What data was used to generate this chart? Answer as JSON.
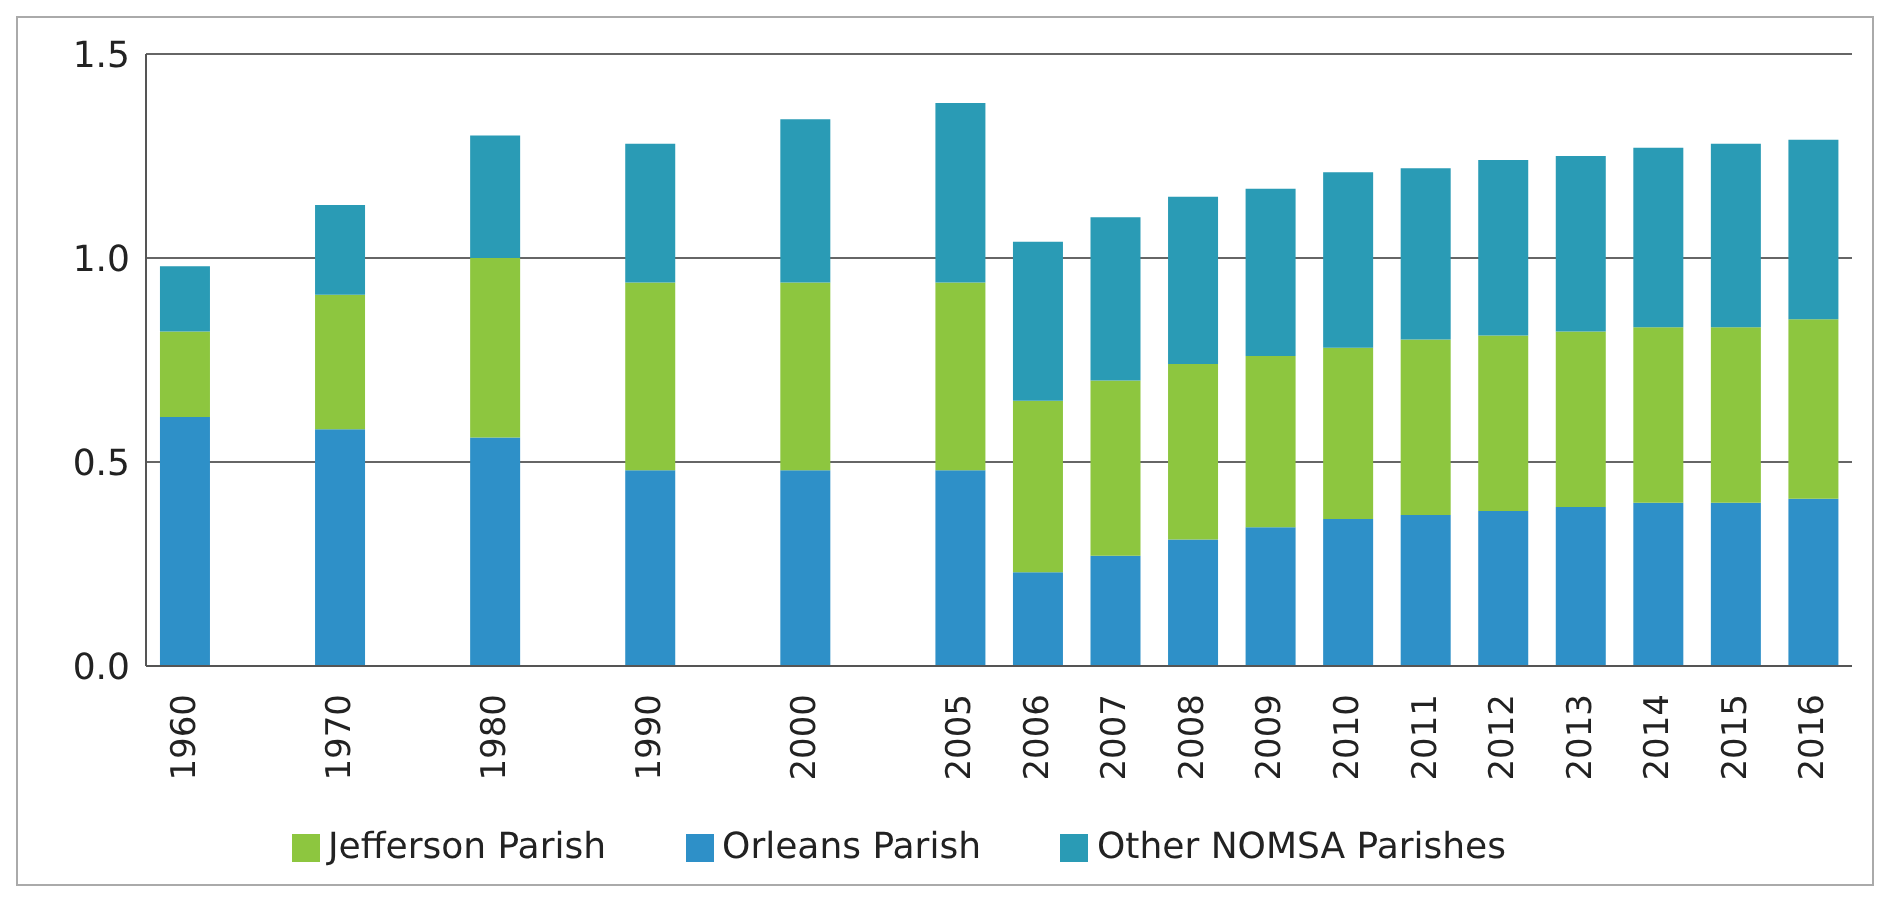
{
  "chart_data": {
    "type": "bar",
    "stacked": true,
    "categories": [
      "1960",
      null,
      "1970",
      null,
      "1980",
      null,
      "1990",
      null,
      "2000",
      null,
      "2005",
      "2006",
      "2007",
      "2008",
      "2009",
      "2010",
      "2011",
      "2012",
      "2013",
      "2014",
      "2015",
      "2016"
    ],
    "series": [
      {
        "name": "Orleans Parish",
        "color": "#2e90c8",
        "values": [
          0.61,
          null,
          0.58,
          null,
          0.56,
          null,
          0.48,
          null,
          0.48,
          null,
          0.48,
          0.23,
          0.27,
          0.31,
          0.34,
          0.36,
          0.37,
          0.38,
          0.39,
          0.4,
          0.4,
          0.41
        ]
      },
      {
        "name": "Jefferson Parish",
        "color": "#8dc63f",
        "values": [
          0.21,
          null,
          0.33,
          null,
          0.44,
          null,
          0.46,
          null,
          0.46,
          null,
          0.46,
          0.42,
          0.43,
          0.43,
          0.42,
          0.42,
          0.43,
          0.43,
          0.43,
          0.43,
          0.43,
          0.44
        ]
      },
      {
        "name": "Other NOMSA Parishes",
        "color": "#2a9bb5",
        "values": [
          0.16,
          null,
          0.22,
          null,
          0.3,
          null,
          0.34,
          null,
          0.4,
          null,
          0.44,
          0.39,
          0.4,
          0.41,
          0.41,
          0.43,
          0.42,
          0.43,
          0.43,
          0.44,
          0.45,
          0.44
        ]
      }
    ],
    "ylim": [
      0,
      1.5
    ],
    "yticks": [
      {
        "value": 0,
        "label": "0.0"
      },
      {
        "value": 0.5,
        "label": "0.5"
      },
      {
        "value": 1,
        "label": "1.0"
      },
      {
        "value": 1.5,
        "label": "1.5"
      }
    ],
    "grid": "y",
    "legend": "bottom"
  }
}
